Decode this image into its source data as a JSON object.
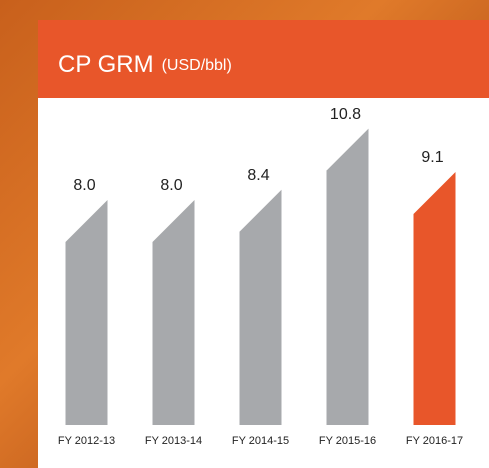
{
  "chart_data": {
    "type": "bar",
    "title": "CP GRM",
    "title_unit": "(USD/bbl)",
    "categories": [
      "FY 2012-13",
      "FY 2013-14",
      "FY 2014-15",
      "FY 2015-16",
      "FY 2016-17"
    ],
    "values": [
      8.0,
      8.0,
      8.4,
      10.8,
      9.1
    ],
    "value_labels": [
      "8.0",
      "8.0",
      "8.4",
      "10.8",
      "9.1"
    ],
    "colors": [
      "#a7a9ac",
      "#a7a9ac",
      "#a7a9ac",
      "#a7a9ac",
      "#e8562a"
    ]
  }
}
